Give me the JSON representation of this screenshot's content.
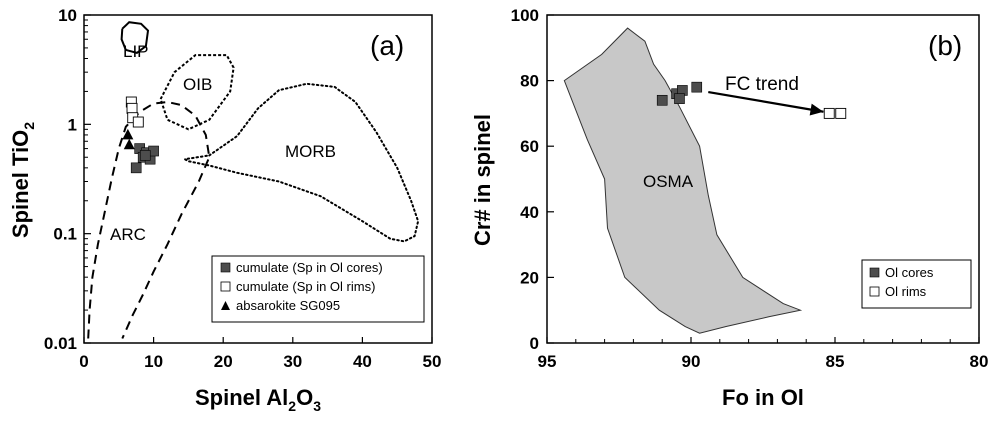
{
  "chart_data": [
    {
      "type": "scatter",
      "panel_label": "(a)",
      "xlabel_main": "Spinel Al",
      "xlabel_sub": "2",
      "xlabel_tail": "O",
      "xlabel_sub2": "3",
      "ylabel_main": "Spinel TiO",
      "ylabel_sub": "2",
      "xlim": [
        0,
        50
      ],
      "ylim": [
        0.01,
        10
      ],
      "yscale": "log",
      "grid": false,
      "legend_position": "bottom-right",
      "x_ticks": [
        "0",
        "10",
        "20",
        "30",
        "40",
        "50"
      ],
      "y_ticks": [
        "0.01",
        "0.1",
        "1",
        "10"
      ],
      "fields": [
        {
          "name": "LIP",
          "label": "LIP"
        },
        {
          "name": "OIB",
          "label": "OIB"
        },
        {
          "name": "MORB",
          "label": "MORB"
        },
        {
          "name": "ARC",
          "label": "ARC"
        }
      ],
      "series": [
        {
          "name": "cumulate (Sp in Ol cores)",
          "marker": "filled-square",
          "points": [
            [
              7.5,
              0.4
            ],
            [
              8,
              0.6
            ],
            [
              8.5,
              0.5
            ],
            [
              9,
              0.55
            ],
            [
              9.5,
              0.48
            ],
            [
              10,
              0.57
            ],
            [
              8.8,
              0.52
            ]
          ]
        },
        {
          "name": "cumulate (Sp in Ol rims)",
          "marker": "open-square",
          "points": [
            [
              6.8,
              1.6
            ],
            [
              6.9,
              1.4
            ],
            [
              7,
              1.15
            ],
            [
              7.8,
              1.05
            ]
          ]
        },
        {
          "name": "absarokite SG095",
          "marker": "filled-triangle",
          "points": [
            [
              6.3,
              0.8
            ],
            [
              6.5,
              0.65
            ]
          ]
        }
      ]
    },
    {
      "type": "scatter",
      "panel_label": "(b)",
      "xlabel": "Fo in Ol",
      "ylabel": "Cr# in spinel",
      "xlim": [
        95,
        80
      ],
      "ylim": [
        0,
        100
      ],
      "grid": false,
      "legend_position": "bottom-right",
      "x_ticks": [
        "95",
        "90",
        "85",
        "80"
      ],
      "y_ticks": [
        "0",
        "20",
        "40",
        "60",
        "80",
        "100"
      ],
      "fields": [
        {
          "name": "OSMA",
          "label": "OSMA"
        }
      ],
      "annotations": [
        {
          "text": "FC trend",
          "from": [
            89.4,
            76.5
          ],
          "to": [
            85.4,
            70.5
          ]
        }
      ],
      "series": [
        {
          "name": "Ol cores",
          "marker": "filled-square",
          "points": [
            [
              91.0,
              74
            ],
            [
              90.5,
              76
            ],
            [
              90.3,
              77
            ],
            [
              90.4,
              74.5
            ],
            [
              89.8,
              78
            ]
          ]
        },
        {
          "name": "Ol rims",
          "marker": "open-square",
          "points": [
            [
              85.2,
              70
            ],
            [
              84.8,
              70
            ]
          ]
        }
      ]
    }
  ]
}
